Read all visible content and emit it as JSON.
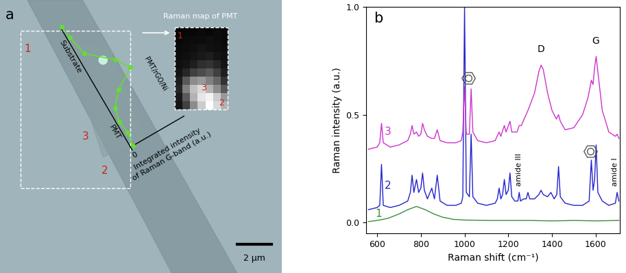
{
  "chart_data": [
    {
      "type": "micrograph",
      "label": "a",
      "site_labels": [
        "1",
        "2",
        "3"
      ],
      "profile": {
        "start_label": "Substrate",
        "end_label": "PMT",
        "peak_label": "PMT/rGO/Ni",
        "value_label": "Integrated intensity\nof Raman G-band (a.u.)",
        "ylim": [
          0,
          1
        ],
        "yticks": [
          0
        ],
        "color": "#66dd33",
        "marker": "o",
        "positions": [
          0,
          0.1,
          0.25,
          0.4,
          0.5,
          0.6,
          0.7,
          0.8,
          0.9,
          1.0
        ],
        "values": [
          0.02,
          0.05,
          0.12,
          0.5,
          0.65,
          0.3,
          0.1,
          0.05,
          0.08,
          0.04
        ]
      },
      "inset": {
        "title": "Raman map of PMT",
        "cell_range": [
          0,
          1
        ],
        "cells": [
          [
            0.02,
            0.03,
            0.03,
            0.04,
            0.03,
            0.05,
            0.04
          ],
          [
            0.03,
            0.04,
            0.05,
            0.05,
            0.06,
            0.05,
            0.04
          ],
          [
            0.04,
            0.05,
            0.06,
            0.08,
            0.07,
            0.06,
            0.05
          ],
          [
            0.05,
            0.06,
            0.08,
            0.1,
            0.12,
            0.08,
            0.06
          ],
          [
            0.06,
            0.08,
            0.12,
            0.18,
            0.2,
            0.15,
            0.08
          ],
          [
            0.08,
            0.15,
            0.25,
            0.3,
            0.35,
            0.25,
            0.12
          ],
          [
            0.12,
            0.35,
            0.55,
            0.6,
            0.5,
            0.4,
            0.2
          ],
          [
            0.15,
            0.5,
            0.75,
            0.85,
            0.7,
            0.55,
            0.35
          ],
          [
            0.1,
            0.35,
            0.7,
            0.9,
            0.95,
            0.8,
            0.6
          ],
          [
            0.08,
            0.25,
            0.55,
            0.8,
            1.0,
            0.85,
            0.7
          ]
        ]
      },
      "scale_bar": "2 μm"
    },
    {
      "type": "line",
      "label": "b",
      "x_label": "Raman shift (cm⁻¹)",
      "y_label": "Raman intensity (a.u.)",
      "xlim": [
        550,
        1710
      ],
      "xticks": [
        600,
        800,
        1000,
        1200,
        1400,
        1600
      ],
      "ylim": [
        -0.05,
        1.0
      ],
      "yticks": [
        {
          "value": 0.0,
          "label": "0.0"
        },
        {
          "value": 0.5,
          "label": "0.5"
        },
        {
          "value": 1.0,
          "label": "1.0"
        }
      ],
      "series": [
        {
          "name": "1",
          "color": "#3c8c3c",
          "label_at": [
            605,
            0.042
          ],
          "x": [
            560,
            600,
            650,
            700,
            740,
            780,
            820,
            860,
            900,
            950,
            1000,
            1100,
            1200,
            1300,
            1400,
            1500,
            1600,
            1706
          ],
          "values": [
            0.005,
            0.01,
            0.02,
            0.04,
            0.06,
            0.075,
            0.06,
            0.04,
            0.025,
            0.015,
            0.012,
            0.01,
            0.01,
            0.01,
            0.008,
            0.01,
            0.008,
            0.01
          ]
        },
        {
          "name": "2",
          "color": "#2222cc",
          "label_at": [
            648,
            0.17
          ],
          "x": [
            560,
            600,
            612,
            620,
            628,
            660,
            700,
            740,
            752,
            760,
            768,
            780,
            790,
            800,
            808,
            816,
            830,
            850,
            862,
            875,
            888,
            920,
            960,
            985,
            992,
            1000,
            1008,
            1022,
            1030,
            1038,
            1060,
            1100,
            1140,
            1150,
            1158,
            1166,
            1174,
            1182,
            1190,
            1200,
            1208,
            1216,
            1230,
            1244,
            1250,
            1256,
            1270,
            1282,
            1290,
            1298,
            1320,
            1340,
            1350,
            1360,
            1380,
            1395,
            1410,
            1422,
            1430,
            1438,
            1460,
            1500,
            1540,
            1570,
            1580,
            1588,
            1595,
            1602,
            1610,
            1630,
            1660,
            1690,
            1698,
            1706
          ],
          "values": [
            0.06,
            0.07,
            0.08,
            0.27,
            0.08,
            0.07,
            0.08,
            0.1,
            0.14,
            0.22,
            0.14,
            0.2,
            0.14,
            0.16,
            0.23,
            0.15,
            0.11,
            0.16,
            0.11,
            0.22,
            0.1,
            0.08,
            0.08,
            0.09,
            0.12,
            1.0,
            0.14,
            0.12,
            0.41,
            0.12,
            0.09,
            0.08,
            0.09,
            0.11,
            0.16,
            0.11,
            0.13,
            0.2,
            0.13,
            0.15,
            0.23,
            0.12,
            0.1,
            0.1,
            0.14,
            0.1,
            0.11,
            0.11,
            0.14,
            0.11,
            0.11,
            0.13,
            0.15,
            0.13,
            0.12,
            0.14,
            0.11,
            0.13,
            0.26,
            0.12,
            0.09,
            0.08,
            0.08,
            0.1,
            0.29,
            0.15,
            0.2,
            0.36,
            0.14,
            0.1,
            0.08,
            0.09,
            0.14,
            0.1
          ]
        },
        {
          "name": "3",
          "color": "#cc33cc",
          "label_at": [
            648,
            0.42
          ],
          "x": [
            560,
            600,
            612,
            620,
            628,
            660,
            700,
            740,
            752,
            760,
            768,
            780,
            790,
            800,
            808,
            816,
            830,
            850,
            862,
            875,
            888,
            920,
            960,
            985,
            992,
            1000,
            1008,
            1022,
            1030,
            1038,
            1060,
            1100,
            1140,
            1158,
            1166,
            1182,
            1190,
            1208,
            1216,
            1240,
            1250,
            1260,
            1290,
            1320,
            1340,
            1350,
            1360,
            1380,
            1400,
            1420,
            1430,
            1438,
            1460,
            1500,
            1540,
            1565,
            1580,
            1588,
            1595,
            1602,
            1612,
            1630,
            1660,
            1690,
            1698,
            1706
          ],
          "values": [
            0.34,
            0.35,
            0.37,
            0.46,
            0.37,
            0.35,
            0.36,
            0.38,
            0.41,
            0.45,
            0.41,
            0.42,
            0.4,
            0.41,
            0.46,
            0.43,
            0.4,
            0.39,
            0.39,
            0.43,
            0.38,
            0.37,
            0.37,
            0.38,
            0.42,
            0.63,
            0.41,
            0.41,
            0.62,
            0.42,
            0.38,
            0.37,
            0.38,
            0.42,
            0.4,
            0.45,
            0.42,
            0.47,
            0.42,
            0.42,
            0.45,
            0.45,
            0.52,
            0.6,
            0.7,
            0.73,
            0.71,
            0.6,
            0.52,
            0.48,
            0.5,
            0.47,
            0.43,
            0.44,
            0.5,
            0.58,
            0.66,
            0.64,
            0.72,
            0.77,
            0.68,
            0.52,
            0.42,
            0.4,
            0.41,
            0.39
          ]
        }
      ],
      "annotations": [
        {
          "text": "D",
          "x": 1350,
          "y": 0.78
        },
        {
          "text": "G",
          "x": 1600,
          "y": 0.82
        },
        {
          "text": "amide III",
          "x": 1250,
          "y": 0.17
        },
        {
          "text": "amide I",
          "x": 1688,
          "y": 0.17
        }
      ],
      "ring_marks": [
        {
          "x": 1018,
          "y": 0.67
        },
        {
          "x": 1575,
          "y": 0.33
        }
      ]
    }
  ]
}
